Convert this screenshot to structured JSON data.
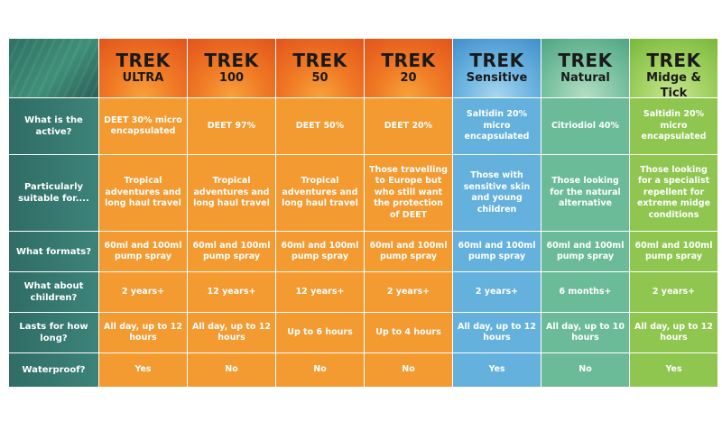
{
  "products": [
    {
      "brand": "TREK",
      "variant": "ULTRA",
      "color": "#f39a31"
    },
    {
      "brand": "TREK",
      "variant": "100",
      "color": "#f39a31"
    },
    {
      "brand": "TREK",
      "variant": "50",
      "color": "#f39a31"
    },
    {
      "brand": "TREK",
      "variant": "20",
      "color": "#f39a31"
    },
    {
      "brand": "TREK",
      "variant": "Sensitive",
      "color": "#65b1dd"
    },
    {
      "brand": "TREK",
      "variant": "Natural",
      "color": "#6cbb98"
    },
    {
      "brand": "TREK",
      "variant": "Midge & Tick",
      "color": "#8fc650"
    }
  ],
  "rows": [
    {
      "label": "What is the active?",
      "values": [
        "DEET 30% micro encapsulated",
        "DEET 97%",
        "DEET 50%",
        "DEET 20%",
        "Saltidin 20% micro encapsulated",
        "Citriodiol 40%",
        "Saltidin 20% micro encapsulated"
      ]
    },
    {
      "label": "Particularly suitable for....",
      "values": [
        "Tropical adventures and long haul travel",
        "Tropical adventures and long haul travel",
        "Tropical adventures and long haul travel",
        "Those travelling to Europe but who still want the protection of DEET",
        "Those with sensitive skin and young children",
        "Those looking for the natural alternative",
        "Those looking for a specialist repellent for extreme midge conditions"
      ]
    },
    {
      "label": "What formats?",
      "values": [
        "60ml and 100ml pump spray",
        "60ml and 100ml pump spray",
        "60ml and 100ml pump spray",
        "60ml and 100ml pump spray",
        "60ml and 100ml pump spray",
        "60ml and 100ml pump spray",
        "60ml and 100ml pump spray"
      ]
    },
    {
      "label": "What about children?",
      "values": [
        "2 years+",
        "12 years+",
        "12 years+",
        "2 years+",
        "2 years+",
        "6 months+",
        "2 years+"
      ]
    },
    {
      "label": "Lasts for how long?",
      "values": [
        "All day, up to 12 hours",
        "All day, up to 12 hours",
        "Up to 6 hours",
        "Up to 4 hours",
        "All day, up to 12 hours",
        "All day, up to 10 hours",
        "All day, up to 12 hours"
      ]
    },
    {
      "label": "Waterproof?",
      "values": [
        "Yes",
        "No",
        "No",
        "No",
        "Yes",
        "No",
        "Yes"
      ]
    }
  ]
}
